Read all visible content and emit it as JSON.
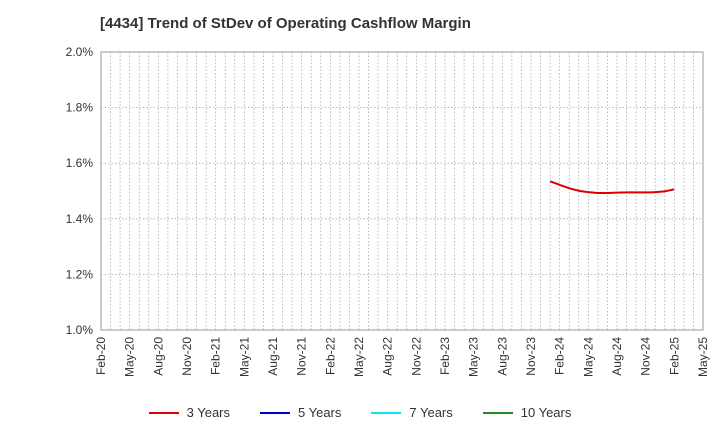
{
  "chart_data": {
    "type": "line",
    "title": "[4434]  Trend of StDev of Operating Cashflow Margin",
    "xlabel": "",
    "ylabel": "",
    "ylim": [
      1.0,
      2.0
    ],
    "y_ticks": [
      "1.0%",
      "1.2%",
      "1.4%",
      "1.6%",
      "1.8%",
      "2.0%"
    ],
    "x_ticks": [
      "Feb-20",
      "May-20",
      "Aug-20",
      "Nov-20",
      "Feb-21",
      "May-21",
      "Aug-21",
      "Nov-21",
      "Feb-22",
      "May-22",
      "Aug-22",
      "Nov-22",
      "Feb-23",
      "May-23",
      "Aug-23",
      "Nov-23",
      "Feb-24",
      "May-24",
      "Aug-24",
      "Nov-24",
      "Feb-25",
      "May-25"
    ],
    "grid": true,
    "legend_position": "bottom",
    "series": [
      {
        "name": "3 Years",
        "color": "#dd0000",
        "points": [
          {
            "x": "Jan-24",
            "y": 1.535
          },
          {
            "x": "Feb-24",
            "y": 1.522
          },
          {
            "x": "Mar-24",
            "y": 1.51
          },
          {
            "x": "Apr-24",
            "y": 1.501
          },
          {
            "x": "May-24",
            "y": 1.496
          },
          {
            "x": "Jun-24",
            "y": 1.493
          },
          {
            "x": "Jul-24",
            "y": 1.493
          },
          {
            "x": "Aug-24",
            "y": 1.494
          },
          {
            "x": "Sep-24",
            "y": 1.495
          },
          {
            "x": "Oct-24",
            "y": 1.495
          },
          {
            "x": "Nov-24",
            "y": 1.495
          },
          {
            "x": "Dec-24",
            "y": 1.496
          },
          {
            "x": "Jan-25",
            "y": 1.499
          },
          {
            "x": "Feb-25",
            "y": 1.506
          }
        ]
      },
      {
        "name": "5 Years",
        "color": "#0000cc",
        "points": []
      },
      {
        "name": "7 Years",
        "color": "#00e5ee",
        "points": []
      },
      {
        "name": "10 Years",
        "color": "#228b22",
        "points": []
      }
    ]
  }
}
